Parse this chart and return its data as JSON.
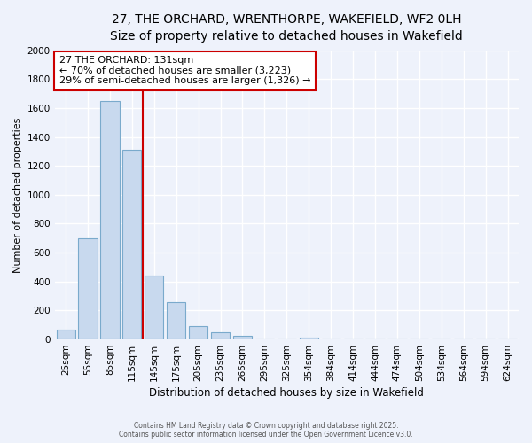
{
  "title": "27, THE ORCHARD, WRENTHORPE, WAKEFIELD, WF2 0LH",
  "subtitle": "Size of property relative to detached houses in Wakefield",
  "xlabel": "Distribution of detached houses by size in Wakefield",
  "ylabel": "Number of detached properties",
  "bar_labels": [
    "25sqm",
    "55sqm",
    "85sqm",
    "115sqm",
    "145sqm",
    "175sqm",
    "205sqm",
    "235sqm",
    "265sqm",
    "295sqm",
    "325sqm",
    "354sqm",
    "384sqm",
    "414sqm",
    "444sqm",
    "474sqm",
    "504sqm",
    "534sqm",
    "564sqm",
    "594sqm",
    "624sqm"
  ],
  "bar_values": [
    65,
    700,
    1650,
    1310,
    440,
    255,
    90,
    50,
    25,
    0,
    0,
    10,
    0,
    0,
    0,
    0,
    0,
    0,
    0,
    0,
    0
  ],
  "bar_color": "#c8d9ee",
  "bar_edge_color": "#7aaacc",
  "vline_color": "#cc0000",
  "annotation_title": "27 THE ORCHARD: 131sqm",
  "annotation_line1": "← 70% of detached houses are smaller (3,223)",
  "annotation_line2": "29% of semi-detached houses are larger (1,326) →",
  "annotation_box_color": "#ffffff",
  "annotation_box_edge": "#cc0000",
  "ylim": [
    0,
    2000
  ],
  "yticks": [
    0,
    200,
    400,
    600,
    800,
    1000,
    1200,
    1400,
    1600,
    1800,
    2000
  ],
  "footer_line1": "Contains HM Land Registry data © Crown copyright and database right 2025.",
  "footer_line2": "Contains public sector information licensed under the Open Government Licence v3.0.",
  "background_color": "#eef2fb",
  "grid_color": "#ffffff",
  "title_fontsize": 10,
  "subtitle_fontsize": 9
}
